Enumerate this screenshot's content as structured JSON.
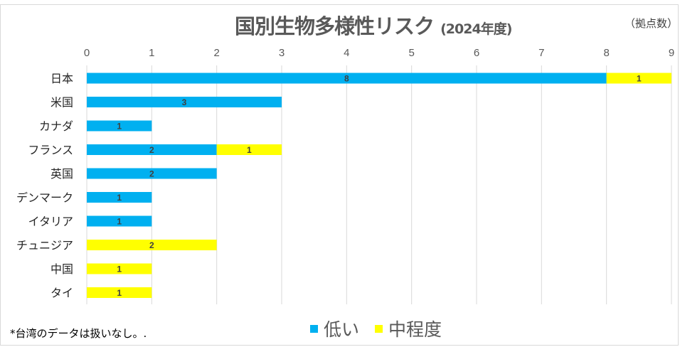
{
  "chart_data": {
    "type": "bar",
    "orientation": "horizontal-stacked",
    "title": "国別生物多様性リスク",
    "subtitle": "(2024年度)",
    "unit_label": "（拠点数）",
    "categories": [
      "日本",
      "米国",
      "カナダ",
      "フランス",
      "英国",
      "デンマーク",
      "イタリア",
      "チュニジア",
      "中国",
      "タイ"
    ],
    "series": [
      {
        "name": "低い",
        "color": "#00b0f0",
        "values": [
          8,
          3,
          1,
          2,
          2,
          1,
          1,
          0,
          0,
          0
        ]
      },
      {
        "name": "中程度",
        "color": "#ffff00",
        "values": [
          1,
          0,
          0,
          1,
          0,
          0,
          0,
          2,
          1,
          1
        ]
      }
    ],
    "xlim": [
      0,
      9
    ],
    "xticks": [
      0,
      1,
      2,
      3,
      4,
      5,
      6,
      7,
      8,
      9
    ],
    "grid": true,
    "legend": "bottom",
    "note": "*台湾のデータは扱いなし。."
  }
}
